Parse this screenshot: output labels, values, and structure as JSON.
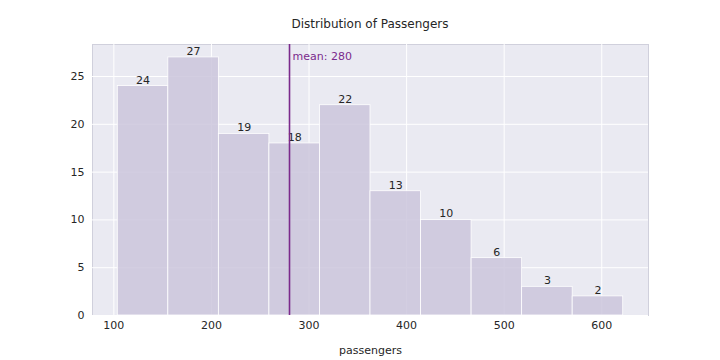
{
  "chart_data": {
    "type": "histogram",
    "title": "Distribution of Passengers",
    "x_label": "passengers",
    "bins": [
      104,
      155.8,
      207.6,
      259.4,
      311.2,
      363,
      414.8,
      466.6,
      518.4,
      570.2,
      622
    ],
    "values": [
      24,
      27,
      19,
      18,
      22,
      13,
      10,
      6,
      3,
      2
    ],
    "color": "#cbc6dc",
    "data_labels": true,
    "grid": true,
    "xlim": [
      78.1,
      647.9
    ],
    "xticks": [
      100,
      200,
      300,
      400,
      500,
      600
    ],
    "ylim": [
      0,
      28.35
    ],
    "yticks": [
      0,
      5,
      10,
      15,
      20,
      25
    ],
    "annotations": [
      {
        "x": 280,
        "text": "mean: 280",
        "color": "#7b2a8c"
      }
    ]
  }
}
